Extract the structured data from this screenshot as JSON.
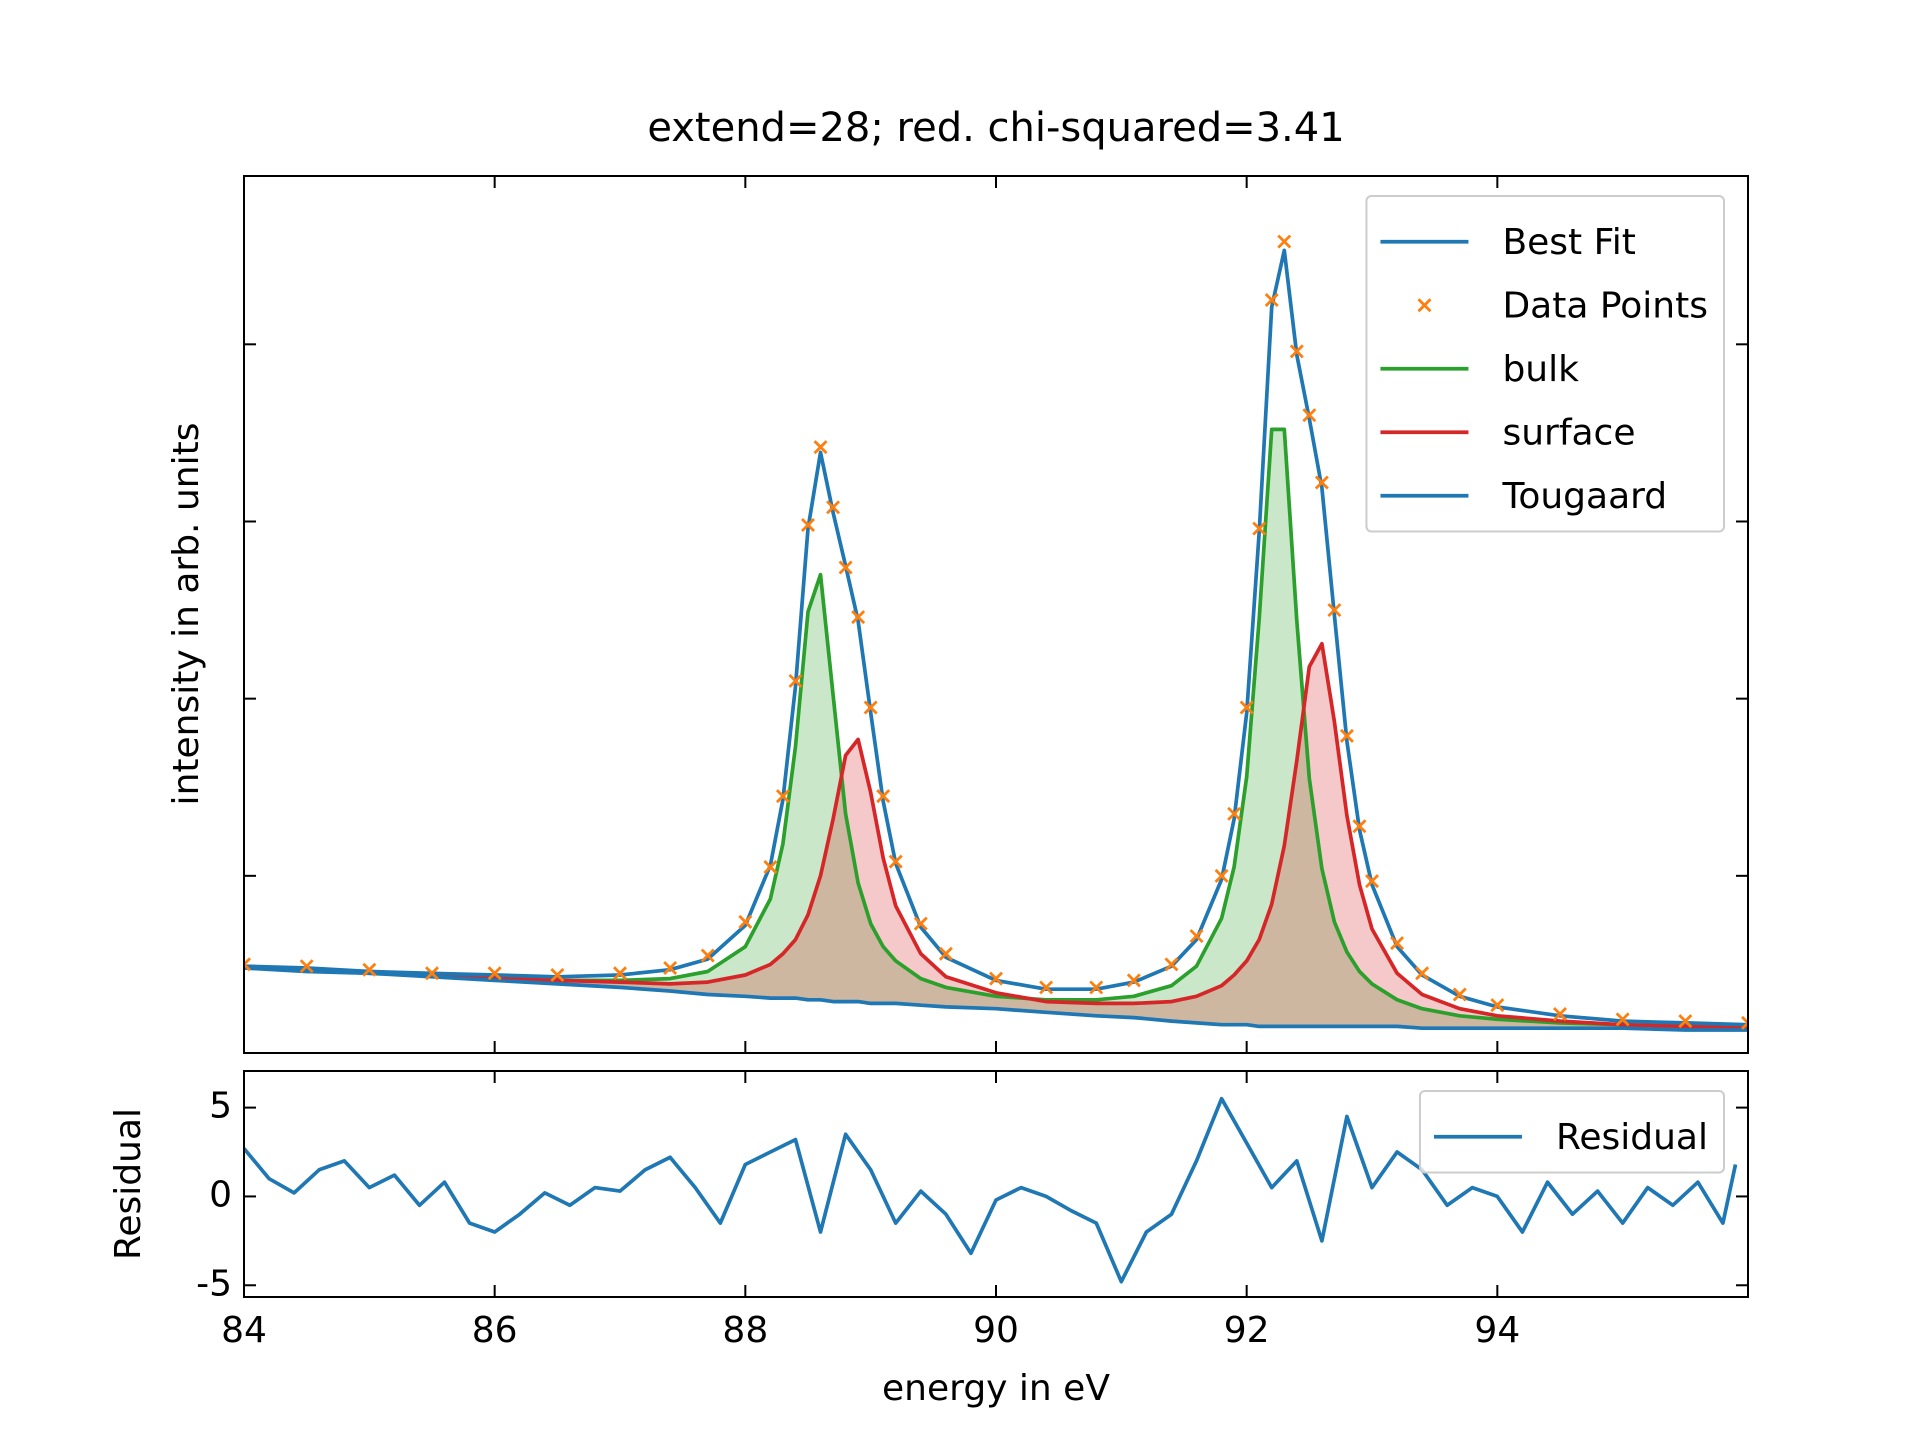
{
  "chart_data": [
    {
      "type": "line",
      "title": "extend=28; red. chi-squared=3.41",
      "ylabel": "intensity in arb. units",
      "xlim": [
        84,
        96
      ],
      "xticks": [
        84,
        86,
        88,
        90,
        92,
        94
      ],
      "ylim": [
        0,
        4.95
      ],
      "yticks": [
        1,
        2,
        3,
        4
      ],
      "legend": "upper right",
      "x": [
        84,
        84.5,
        85,
        85.5,
        86,
        86.5,
        87,
        87.4,
        87.7,
        88,
        88.2,
        88.3,
        88.4,
        88.5,
        88.6,
        88.7,
        88.8,
        88.9,
        89,
        89.1,
        89.2,
        89.4,
        89.6,
        90,
        90.4,
        90.8,
        91.1,
        91.4,
        91.6,
        91.8,
        91.9,
        92,
        92.1,
        92.2,
        92.3,
        92.4,
        92.5,
        92.6,
        92.7,
        92.8,
        92.9,
        93,
        93.2,
        93.4,
        93.7,
        94,
        94.5,
        95,
        95.5,
        96
      ],
      "series": [
        {
          "name": "Best Fit",
          "color": "#1f77b4",
          "values": [
            0.49,
            0.48,
            0.46,
            0.45,
            0.44,
            0.43,
            0.44,
            0.47,
            0.53,
            0.72,
            1.06,
            1.43,
            2.07,
            2.96,
            3.39,
            3.05,
            2.75,
            2.44,
            1.92,
            1.42,
            1.07,
            0.71,
            0.54,
            0.41,
            0.36,
            0.36,
            0.4,
            0.49,
            0.64,
            0.98,
            1.32,
            1.92,
            2.94,
            4.21,
            4.53,
            3.94,
            3.58,
            3.19,
            2.47,
            1.76,
            1.26,
            0.95,
            0.6,
            0.44,
            0.32,
            0.26,
            0.21,
            0.18,
            0.17,
            0.16
          ]
        },
        {
          "name": "Data Points",
          "color": "#ff7f0e",
          "marker": "x",
          "values": [
            0.5,
            0.49,
            0.47,
            0.45,
            0.45,
            0.44,
            0.45,
            0.48,
            0.55,
            0.74,
            1.05,
            1.45,
            2.1,
            2.98,
            3.42,
            3.08,
            2.74,
            2.46,
            1.95,
            1.45,
            1.08,
            0.73,
            0.56,
            0.42,
            0.37,
            0.37,
            0.41,
            0.5,
            0.66,
            1.0,
            1.35,
            1.95,
            2.96,
            4.25,
            4.58,
            3.96,
            3.6,
            3.22,
            2.5,
            1.79,
            1.28,
            0.97,
            0.62,
            0.45,
            0.33,
            0.27,
            0.22,
            0.19,
            0.18,
            0.17
          ]
        },
        {
          "name": "bulk",
          "color": "#2ca02c",
          "fill": true,
          "values": [
            0.49,
            0.47,
            0.46,
            0.44,
            0.43,
            0.41,
            0.41,
            0.42,
            0.46,
            0.6,
            0.87,
            1.18,
            1.73,
            2.49,
            2.7,
            2.02,
            1.35,
            0.96,
            0.73,
            0.6,
            0.52,
            0.42,
            0.37,
            0.32,
            0.3,
            0.3,
            0.32,
            0.38,
            0.49,
            0.76,
            1.05,
            1.56,
            2.45,
            3.52,
            3.52,
            2.44,
            1.55,
            1.04,
            0.74,
            0.57,
            0.46,
            0.39,
            0.3,
            0.25,
            0.21,
            0.19,
            0.17,
            0.16,
            0.15,
            0.14
          ]
        },
        {
          "name": "surface",
          "color": "#d62728",
          "fill": true,
          "values": [
            0.49,
            0.47,
            0.45,
            0.44,
            0.42,
            0.41,
            0.4,
            0.39,
            0.4,
            0.44,
            0.5,
            0.56,
            0.64,
            0.78,
            1.0,
            1.32,
            1.68,
            1.77,
            1.47,
            1.1,
            0.83,
            0.56,
            0.43,
            0.34,
            0.29,
            0.28,
            0.28,
            0.29,
            0.32,
            0.38,
            0.44,
            0.52,
            0.64,
            0.84,
            1.17,
            1.65,
            2.18,
            2.31,
            1.87,
            1.34,
            0.95,
            0.7,
            0.45,
            0.33,
            0.25,
            0.21,
            0.18,
            0.16,
            0.15,
            0.14
          ]
        },
        {
          "name": "Tougaard",
          "color": "#1f77b4",
          "values": [
            0.48,
            0.46,
            0.45,
            0.43,
            0.41,
            0.39,
            0.37,
            0.35,
            0.33,
            0.32,
            0.31,
            0.31,
            0.31,
            0.3,
            0.3,
            0.29,
            0.29,
            0.29,
            0.28,
            0.28,
            0.28,
            0.27,
            0.26,
            0.25,
            0.23,
            0.21,
            0.2,
            0.18,
            0.17,
            0.16,
            0.16,
            0.16,
            0.15,
            0.15,
            0.15,
            0.15,
            0.15,
            0.15,
            0.15,
            0.15,
            0.15,
            0.15,
            0.15,
            0.14,
            0.14,
            0.14,
            0.14,
            0.14,
            0.13,
            0.13
          ]
        }
      ]
    },
    {
      "type": "line",
      "xlabel": "energy in eV",
      "ylabel": "Residual",
      "xlim": [
        84,
        96
      ],
      "xticks": [
        84,
        86,
        88,
        90,
        92,
        94
      ],
      "ylim": [
        -5.66,
        7.06
      ],
      "yticks": [
        -5,
        0,
        5
      ],
      "legend": "upper right",
      "x": [
        84,
        84.2,
        84.4,
        84.6,
        84.8,
        85,
        85.2,
        85.4,
        85.6,
        85.8,
        86,
        86.2,
        86.4,
        86.6,
        86.8,
        87,
        87.2,
        87.4,
        87.6,
        87.8,
        88,
        88.2,
        88.4,
        88.6,
        88.8,
        89,
        89.2,
        89.4,
        89.6,
        89.8,
        90,
        90.2,
        90.4,
        90.6,
        90.8,
        91,
        91.2,
        91.4,
        91.6,
        91.8,
        92,
        92.2,
        92.4,
        92.6,
        92.8,
        93,
        93.2,
        93.4,
        93.6,
        93.8,
        94,
        94.2,
        94.4,
        94.6,
        94.8,
        95,
        95.2,
        95.4,
        95.6,
        95.8,
        95.9
      ],
      "series": [
        {
          "name": "Residual",
          "color": "#1f77b4",
          "values": [
            2.7,
            1.0,
            0.2,
            1.5,
            2.0,
            0.5,
            1.2,
            -0.5,
            0.8,
            -1.5,
            -2.0,
            -1.0,
            0.2,
            -0.5,
            0.5,
            0.3,
            1.5,
            2.2,
            0.5,
            -1.5,
            1.8,
            2.5,
            3.2,
            -2.0,
            3.5,
            1.5,
            -1.5,
            0.3,
            -1.0,
            -3.2,
            -0.2,
            0.5,
            0.0,
            -0.8,
            -1.5,
            -4.8,
            -2.0,
            -1.0,
            2.0,
            5.5,
            3.0,
            0.5,
            2.0,
            -2.5,
            4.5,
            0.5,
            2.5,
            1.5,
            -0.5,
            0.5,
            0.0,
            -2.0,
            0.8,
            -1.0,
            0.3,
            -1.5,
            0.5,
            -0.5,
            0.8,
            -1.5,
            1.8
          ]
        }
      ]
    }
  ]
}
